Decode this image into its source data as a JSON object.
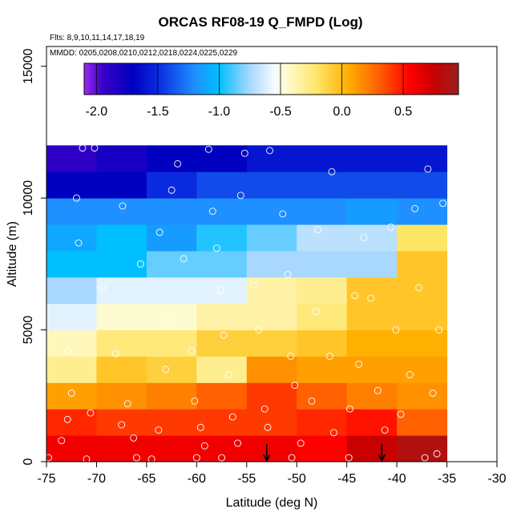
{
  "chart_data": {
    "type": "heatmap",
    "title": "ORCAS RF08-19 Q_FMPD (Log)",
    "notes": [
      "Flts: 8,9,10,11,14,17,18,19",
      "MMDD: 0205,0208,0210,0212,0218,0224,0225,0229"
    ],
    "xlabel": "Latitude (deg N)",
    "ylabel": "Altitude (m)",
    "xlim": [
      -75,
      -30
    ],
    "ylim": [
      0,
      15750
    ],
    "x_ticks": [
      -75,
      -70,
      -65,
      -60,
      -55,
      -50,
      -45,
      -40,
      -35,
      -30
    ],
    "y_ticks": [
      0,
      5000,
      10000,
      15000
    ],
    "x_tick_labels": [
      "-75",
      "-70",
      "-65",
      "-60",
      "-55",
      "-50",
      "-45",
      "-40",
      "-35",
      "-30"
    ],
    "y_tick_labels": [
      "0",
      "5000",
      "10000",
      "15000"
    ],
    "x_bins": [
      -75,
      -70,
      -65,
      -60,
      -55,
      -50,
      -45,
      -40,
      -35
    ],
    "alt_bins": [
      0,
      1000,
      2000,
      3000,
      4000,
      5000,
      6000,
      7000,
      8000,
      9000,
      10000,
      11000,
      12000
    ],
    "grid": [
      [
        0.6,
        0.6,
        0.6,
        0.6,
        0.6,
        0.55,
        0.75,
        0.85
      ],
      [
        0.45,
        0.4,
        0.4,
        0.4,
        0.4,
        0.45,
        0.5,
        0.3
      ],
      [
        0.1,
        0.15,
        0.2,
        0.3,
        0.4,
        0.3,
        0.2,
        0.15
      ],
      [
        -0.3,
        -0.05,
        -0.1,
        -0.3,
        0.15,
        0.1,
        0.1,
        0.1
      ],
      [
        -0.4,
        -0.25,
        -0.25,
        -0.1,
        -0.1,
        -0.05,
        0.05,
        0.05
      ],
      [
        -0.6,
        -0.45,
        -0.45,
        -0.35,
        -0.35,
        -0.25,
        -0.05,
        -0.05
      ],
      [
        -0.75,
        -0.6,
        -0.6,
        -0.6,
        -0.35,
        -0.3,
        -0.05,
        -0.05
      ],
      [
        -1.0,
        -1.0,
        -0.85,
        -0.85,
        -0.75,
        -0.75,
        -0.75,
        -0.05
      ],
      [
        -1.1,
        -1.0,
        -1.15,
        -0.95,
        -0.85,
        -0.7,
        -0.7,
        -0.2
      ],
      [
        -1.2,
        -1.2,
        -1.2,
        -1.2,
        -1.2,
        -1.2,
        -1.15,
        -1.2
      ],
      [
        -1.7,
        -1.7,
        -1.5,
        -1.4,
        -1.4,
        -1.4,
        -1.4,
        -1.4
      ],
      [
        -1.9,
        -1.8,
        -1.7,
        -1.7,
        -1.6,
        -1.6,
        -1.6,
        -1.6
      ]
    ],
    "grid_note": "grid rows ordered by altitude bin (lowest first), columns by latitude bin (west to east); values are log10 Q_FMPD",
    "colorbar": {
      "min": -2.1,
      "max": 0.95,
      "ticks": [
        -2.0,
        -1.5,
        -1.0,
        -0.5,
        0.0,
        0.5
      ],
      "tick_labels": [
        "-2.0",
        "-1.5",
        "-1.0",
        "-0.5",
        "0.0",
        "0.5"
      ],
      "stops": [
        {
          "v": -2.1,
          "c": "#9a2cf2"
        },
        {
          "v": -1.95,
          "c": "#3a00c8"
        },
        {
          "v": -1.7,
          "c": "#0000c0"
        },
        {
          "v": -1.5,
          "c": "#0a2ae0"
        },
        {
          "v": -1.2,
          "c": "#1e90ff"
        },
        {
          "v": -1.0,
          "c": "#00bfff"
        },
        {
          "v": -0.75,
          "c": "#a8d8ff"
        },
        {
          "v": -0.55,
          "c": "#f5fbff"
        },
        {
          "v": -0.45,
          "c": "#fffbd0"
        },
        {
          "v": -0.2,
          "c": "#ffe566"
        },
        {
          "v": 0.05,
          "c": "#ffb000"
        },
        {
          "v": 0.3,
          "c": "#ff6000"
        },
        {
          "v": 0.55,
          "c": "#ff0000"
        },
        {
          "v": 0.75,
          "c": "#c80000"
        },
        {
          "v": 0.95,
          "c": "#9a2020"
        }
      ]
    },
    "arrows_lat": [
      -53,
      -41.5
    ],
    "samples": [
      [
        -74.8,
        150
      ],
      [
        -73.5,
        800
      ],
      [
        -72.9,
        1600
      ],
      [
        -72.5,
        2600
      ],
      [
        -72.8,
        4200
      ],
      [
        -71.0,
        100
      ],
      [
        -70.6,
        1850
      ],
      [
        -71.4,
        11900
      ],
      [
        -72.0,
        10000
      ],
      [
        -71.8,
        8300
      ],
      [
        -70.2,
        11900
      ],
      [
        -69.4,
        6600
      ],
      [
        -68.1,
        4100
      ],
      [
        -67.4,
        9700
      ],
      [
        -66.9,
        2200
      ],
      [
        -67.5,
        1400
      ],
      [
        -66.3,
        900
      ],
      [
        -65.6,
        7500
      ],
      [
        -64.5,
        100
      ],
      [
        -63.8,
        1200
      ],
      [
        -63.1,
        3500
      ],
      [
        -62.9,
        5400
      ],
      [
        -63.7,
        8700
      ],
      [
        -62.5,
        10300
      ],
      [
        -61.9,
        11300
      ],
      [
        -61.3,
        7700
      ],
      [
        -60.5,
        4200
      ],
      [
        -60.2,
        2300
      ],
      [
        -59.6,
        1300
      ],
      [
        -59.2,
        600
      ],
      [
        -58.8,
        11850
      ],
      [
        -58.4,
        9500
      ],
      [
        -58.0,
        8100
      ],
      [
        -57.6,
        6500
      ],
      [
        -57.3,
        4800
      ],
      [
        -56.8,
        3300
      ],
      [
        -56.4,
        1700
      ],
      [
        -55.9,
        700
      ],
      [
        -55.6,
        10100
      ],
      [
        -55.2,
        11700
      ],
      [
        -54.3,
        6700
      ],
      [
        -53.8,
        5000
      ],
      [
        -53.2,
        2000
      ],
      [
        -52.9,
        1300
      ],
      [
        -52.7,
        11800
      ],
      [
        -51.4,
        9400
      ],
      [
        -50.9,
        7100
      ],
      [
        -50.6,
        4000
      ],
      [
        -50.2,
        2900
      ],
      [
        -49.6,
        700
      ],
      [
        -48.5,
        2300
      ],
      [
        -48.1,
        5700
      ],
      [
        -47.9,
        8800
      ],
      [
        -46.7,
        4000
      ],
      [
        -46.3,
        1100
      ],
      [
        -46.5,
        11000
      ],
      [
        -44.7,
        2000
      ],
      [
        -44.2,
        6300
      ],
      [
        -43.8,
        3700
      ],
      [
        -43.3,
        8500
      ],
      [
        -42.6,
        6200
      ],
      [
        -41.9,
        2700
      ],
      [
        -41.2,
        1200
      ],
      [
        -40.6,
        8900
      ],
      [
        -40.1,
        5000
      ],
      [
        -39.6,
        1800
      ],
      [
        -38.7,
        3300
      ],
      [
        -38.2,
        9600
      ],
      [
        -37.8,
        6600
      ],
      [
        -36.9,
        11100
      ],
      [
        -36.4,
        2600
      ],
      [
        -35.8,
        5000
      ],
      [
        -35.4,
        9800
      ],
      [
        -36.0,
        300
      ],
      [
        -37.2,
        150
      ],
      [
        -66.0,
        150
      ],
      [
        -60.0,
        150
      ],
      [
        -57.5,
        150
      ],
      [
        -50.5,
        150
      ],
      [
        -44.8,
        150
      ]
    ]
  }
}
